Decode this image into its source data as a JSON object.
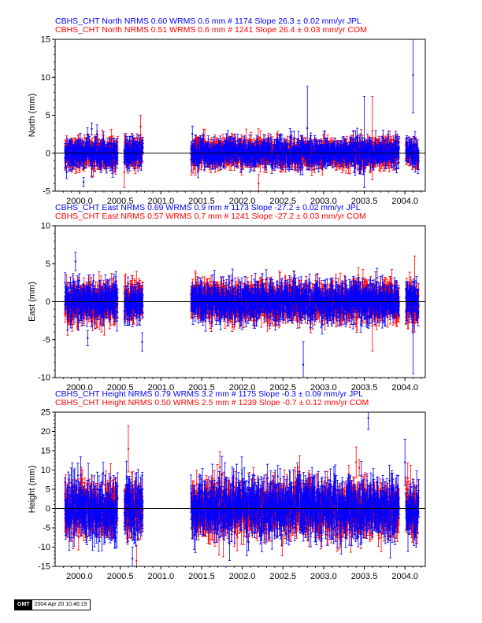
{
  "colors": {
    "jpl": "#0000ff",
    "com": "#ff0000",
    "axis": "#000000"
  },
  "stamp": {
    "logo": "GMT",
    "date": "2004 Apr 20 10:46:19"
  },
  "chart_data": [
    {
      "type": "scatter",
      "ylabel": "North (mm)",
      "xlabel": "",
      "xlim": [
        1999.7,
        2004.25
      ],
      "ylim": [
        -5,
        15
      ],
      "xticks": [
        2000.0,
        2000.5,
        2001.0,
        2001.5,
        2002.0,
        2002.5,
        2003.0,
        2003.5,
        2004.0
      ],
      "xticklabels": [
        "2000.0",
        "2000.5",
        "2001.0",
        "2001.5",
        "2002.0",
        "2002.5",
        "2003.0",
        "2003.5",
        "2004.0"
      ],
      "yticks": [
        -5,
        0,
        5,
        10,
        15
      ],
      "yticklabels": [
        "-5",
        "0",
        "5",
        "10",
        "15"
      ],
      "title_lines": [
        {
          "text": "CBHS_CHT North NRMS 0.60 WRMS  0.6 mm # 1174 Slope   26.3 ±  0.02 mm/yr JPL",
          "color": "#0000ff"
        },
        {
          "text": "CBHS_CHT North NRMS 0.51 WRMS  0.6 mm # 1241 Slope   26.4 ±  0.03 mm/yr COM",
          "color": "#ff0000"
        }
      ],
      "series": [
        {
          "name": "JPL",
          "color": "#0000ff",
          "noise": 0.75,
          "err": 0.9,
          "outliers": [
            {
              "x": 2000.05,
              "y": -3.8,
              "e": 0.6
            },
            {
              "x": 2000.15,
              "y": 3.2,
              "e": 0.8
            },
            {
              "x": 2002.8,
              "y": 3.3,
              "e": 5.5
            },
            {
              "x": 2003.5,
              "y": 1.5,
              "e": 6
            },
            {
              "x": 2004.1,
              "y": 10.3,
              "e": 5
            }
          ]
        },
        {
          "name": "COM",
          "color": "#ff0000",
          "noise": 0.7,
          "err": 1.1,
          "outliers": [
            {
              "x": 2000.55,
              "y": -2.5,
              "e": 2
            },
            {
              "x": 2000.75,
              "y": 3.5,
              "e": 1.5
            },
            {
              "x": 2003.6,
              "y": 2.0,
              "e": 5.5
            },
            {
              "x": 2002.2,
              "y": -4.0,
              "e": 1.2
            }
          ]
        }
      ],
      "segments": [
        [
          1999.82,
          2000.47
        ],
        [
          2000.55,
          2000.78
        ],
        [
          2001.37,
          2003.93
        ],
        [
          2004.01,
          2004.17
        ]
      ]
    },
    {
      "type": "scatter",
      "ylabel": "East (mm)",
      "xlabel": "",
      "xlim": [
        1999.7,
        2004.25
      ],
      "ylim": [
        -10,
        10
      ],
      "xticks": [
        2000.0,
        2000.5,
        2001.0,
        2001.5,
        2002.0,
        2002.5,
        2003.0,
        2003.5,
        2004.0
      ],
      "xticklabels": [
        "2000.0",
        "2000.5",
        "2001.0",
        "2001.5",
        "2002.0",
        "2002.5",
        "2003.0",
        "2003.5",
        "2004.0"
      ],
      "yticks": [
        -10,
        -5,
        0,
        5,
        10
      ],
      "yticklabels": [
        "-10",
        "-5",
        "0",
        "5",
        "10"
      ],
      "title_lines": [
        {
          "text": "CBHS_CHT East NRMS 0.69 WRMS  0.9 mm # 1173 Slope  -27.2 ±  0.02 mm/yr JPL",
          "color": "#0000ff"
        },
        {
          "text": "CBHS_CHT East NRMS 0.57 WRMS  0.7 mm # 1241 Slope  -27.2 ±  0.03 mm/yr COM",
          "color": "#ff0000"
        }
      ],
      "series": [
        {
          "name": "JPL",
          "color": "#0000ff",
          "noise": 1.0,
          "err": 1.2,
          "outliers": [
            {
              "x": 1999.95,
              "y": 5.3,
              "e": 1.2
            },
            {
              "x": 2000.1,
              "y": -4.8,
              "e": 1
            },
            {
              "x": 2000.77,
              "y": -5.3,
              "e": 1.2
            },
            {
              "x": 2002.75,
              "y": -8.3,
              "e": 3
            },
            {
              "x": 2004.1,
              "y": -3.5,
              "e": 6
            }
          ]
        },
        {
          "name": "COM",
          "color": "#ff0000",
          "noise": 0.9,
          "err": 1.5,
          "outliers": [
            {
              "x": 2003.6,
              "y": -2.5,
              "e": 4
            },
            {
              "x": 2004.12,
              "y": 1.0,
              "e": 5
            },
            {
              "x": 2000.7,
              "y": 2.5,
              "e": 1.5
            }
          ]
        }
      ],
      "segments": [
        [
          1999.82,
          2000.47
        ],
        [
          2000.55,
          2000.78
        ],
        [
          2001.37,
          2003.93
        ],
        [
          2004.01,
          2004.17
        ]
      ]
    },
    {
      "type": "scatter",
      "ylabel": "Height (mm)",
      "xlabel": "",
      "xlim": [
        1999.7,
        2004.25
      ],
      "ylim": [
        -15,
        25
      ],
      "xticks": [
        2000.0,
        2000.5,
        2001.0,
        2001.5,
        2002.0,
        2002.5,
        2003.0,
        2003.5,
        2004.0
      ],
      "xticklabels": [
        "2000.0",
        "2000.5",
        "2001.0",
        "2001.5",
        "2002.0",
        "2002.5",
        "2003.0",
        "2003.5",
        "2004.0"
      ],
      "yticks": [
        -15,
        -10,
        -5,
        0,
        5,
        10,
        15,
        20,
        25
      ],
      "yticklabels": [
        "-15",
        "-10",
        "-5",
        "0",
        "5",
        "10",
        "15",
        "20",
        "25"
      ],
      "title_lines": [
        {
          "text": "CBHS_CHT Height NRMS 0.79 WRMS  3.2 mm # 1175 Slope   -0.3 ±  0.09 mm/yr JPL",
          "color": "#0000ff"
        },
        {
          "text": "CBHS_CHT Height NRMS 0.50 WRMS  2.5 mm # 1239 Slope   -0.7 ±  0.12 mm/yr COM",
          "color": "#ff0000"
        }
      ],
      "series": [
        {
          "name": "JPL",
          "color": "#0000ff",
          "noise": 3.2,
          "err": 3.5,
          "outliers": [
            {
              "x": 2003.55,
              "y": 23.5,
              "e": 3
            },
            {
              "x": 2004.0,
              "y": 12.0,
              "e": 6
            },
            {
              "x": 2000.65,
              "y": -13.0,
              "e": 3
            }
          ]
        },
        {
          "name": "COM",
          "color": "#ff0000",
          "noise": 2.8,
          "err": 3.5,
          "outliers": [
            {
              "x": 2000.6,
              "y": 15.5,
              "e": 6
            },
            {
              "x": 2000.7,
              "y": -13.5,
              "e": 4
            },
            {
              "x": 2003.4,
              "y": 12.0,
              "e": 4
            }
          ]
        }
      ],
      "segments": [
        [
          1999.82,
          2000.47
        ],
        [
          2000.55,
          2000.78
        ],
        [
          2001.37,
          2003.93
        ],
        [
          2004.01,
          2004.17
        ]
      ]
    }
  ]
}
